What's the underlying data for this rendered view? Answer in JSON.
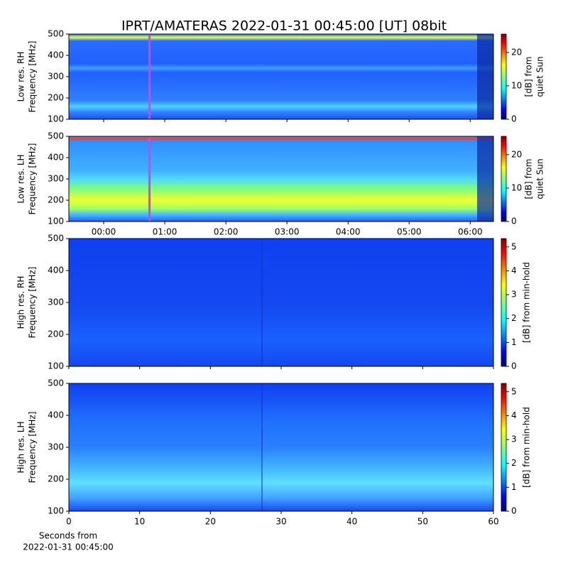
{
  "title": "IPRT/AMATERAS 2022-01-31 00:45:00 [UT]   08bit",
  "chart_data": [
    {
      "type": "heatmap",
      "ylabel": [
        "Low res. RH",
        "Frequency [MHz]"
      ],
      "ylim": [
        100,
        500
      ],
      "yticks": [
        100,
        200,
        300,
        400,
        500
      ],
      "marker_x": 0.75,
      "marker_color": "#e040e0",
      "colorbar": {
        "label": [
          "[dB] from",
          "quiet Sun"
        ],
        "lim": [
          0,
          25.5
        ],
        "ticks": [
          0,
          10,
          20
        ],
        "colormap": "jet"
      }
    },
    {
      "type": "heatmap",
      "ylabel": [
        "Low res. LH",
        "Frequency [MHz]"
      ],
      "ylim": [
        100,
        500
      ],
      "yticks": [
        100,
        200,
        300,
        400,
        500
      ],
      "marker_x": 0.75,
      "marker_color": "#e040e0",
      "xlim": [
        -0.57,
        6.38
      ],
      "xticks": [
        {
          "value": 0,
          "label": "00:00"
        },
        {
          "value": 1,
          "label": "01:00"
        },
        {
          "value": 2,
          "label": "02:00"
        },
        {
          "value": 3,
          "label": "03:00"
        },
        {
          "value": 4,
          "label": "04:00"
        },
        {
          "value": 5,
          "label": "05:00"
        },
        {
          "value": 6,
          "label": "06:00"
        }
      ],
      "colorbar": {
        "label": [
          "[dB] from",
          "quiet Sun"
        ],
        "lim": [
          0,
          25.5
        ],
        "ticks": [
          0,
          10,
          20
        ],
        "colormap": "jet"
      }
    },
    {
      "type": "heatmap",
      "ylabel": [
        "High res. RH",
        "Frequency [MHz]"
      ],
      "ylim": [
        100,
        500
      ],
      "yticks": [
        100,
        200,
        300,
        400,
        500
      ],
      "colorbar": {
        "label": [
          "[dB] from min-hold"
        ],
        "lim": [
          0,
          5.35
        ],
        "ticks": [
          0,
          1,
          2,
          3,
          4,
          5
        ],
        "colormap": "jet"
      }
    },
    {
      "type": "heatmap",
      "ylabel": [
        "High res. LH",
        "Frequency [MHz]"
      ],
      "ylim": [
        100,
        500
      ],
      "yticks": [
        100,
        200,
        300,
        400,
        500
      ],
      "xlim": [
        0,
        60
      ],
      "xticks": [
        0,
        10,
        20,
        30,
        40,
        50,
        60
      ],
      "xlabel": [
        "Seconds from",
        "2022-01-31 00:45:00"
      ],
      "colorbar": {
        "label": [
          "[dB] from min-hold"
        ],
        "lim": [
          0,
          5.35
        ],
        "ticks": [
          0,
          1,
          2,
          3,
          4,
          5
        ],
        "colormap": "jet"
      }
    }
  ]
}
